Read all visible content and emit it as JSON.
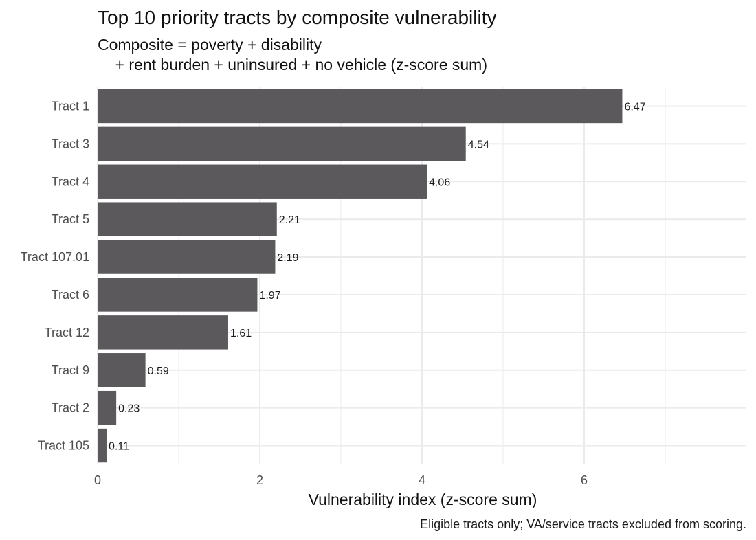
{
  "chart_data": {
    "type": "bar",
    "orientation": "horizontal",
    "title": "Top 10 priority tracts by composite vulnerability",
    "subtitle_lines": [
      "Composite = poverty + disability",
      "    + rent burden + uninsured + no vehicle (z-score sum)"
    ],
    "xlabel": "Vulnerability index (z-score sum)",
    "ylabel": "",
    "caption": "Eligible tracts only; VA/service tracts excluded from scoring.",
    "categories": [
      "Tract 1",
      "Tract 3",
      "Tract 4",
      "Tract 5",
      "Tract 107.01",
      "Tract 6",
      "Tract 12",
      "Tract 9",
      "Tract 2",
      "Tract 105"
    ],
    "values": [
      6.47,
      4.54,
      4.06,
      2.21,
      2.19,
      1.97,
      1.61,
      0.59,
      0.23,
      0.11
    ],
    "value_labels": [
      "6.47",
      "4.54",
      "4.06",
      "2.21",
      "2.19",
      "1.97",
      "1.61",
      "0.59",
      "0.23",
      "0.11"
    ],
    "xlim": [
      0,
      8
    ],
    "xticks": [
      0,
      2,
      4,
      6
    ],
    "xtick_labels": [
      "0",
      "2",
      "4",
      "6"
    ],
    "grid": true,
    "legend": "none",
    "bar_color": "#5b595c"
  }
}
